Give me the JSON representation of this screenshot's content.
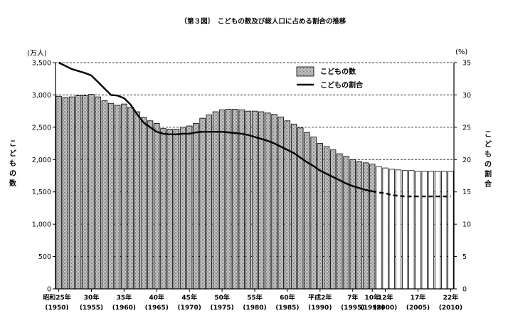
{
  "chart_data": {
    "type": "bar+line",
    "title": "〔第３図〕　こどもの数及び総人口に占める割合の推移",
    "left_axis": {
      "unit": "(万人)",
      "label": "こどもの数",
      "range": [
        0,
        3500
      ],
      "ticks": [
        "0",
        "500",
        "1,000",
        "1,500",
        "2,000",
        "2,500",
        "3,000",
        "3,500"
      ]
    },
    "right_axis": {
      "unit": "(%)",
      "label": "こどもの割合",
      "range": [
        0,
        35
      ],
      "ticks": [
        "0",
        "5",
        "10",
        "15",
        "20",
        "25",
        "30",
        "35"
      ]
    },
    "legend": {
      "bars": "こどもの数",
      "line": "こどもの割合",
      "placement": "top-center"
    },
    "x_label_rows": [
      {
        "text": "昭和25年",
        "sub": "(1950)"
      },
      {
        "text": "30年",
        "sub": "(1955)"
      },
      {
        "text": "35年",
        "sub": "(1960)"
      },
      {
        "text": "40年",
        "sub": "(1965)"
      },
      {
        "text": "45年",
        "sub": "(1970)"
      },
      {
        "text": "50年",
        "sub": "(1975)"
      },
      {
        "text": "55年",
        "sub": "(1980)"
      },
      {
        "text": "60年",
        "sub": "(1985)"
      },
      {
        "text": "平成2年",
        "sub": "(1990)"
      },
      {
        "text": "7年",
        "sub": "(1995)"
      },
      {
        "text": "10年",
        "sub": "(1998)"
      },
      {
        "text": "12年",
        "sub": "(2000)"
      },
      {
        "text": "17年",
        "sub": "(2005)"
      },
      {
        "text": "22年",
        "sub": "(2010)"
      }
    ],
    "x_label_years": [
      1950,
      1955,
      1960,
      1965,
      1970,
      1975,
      1980,
      1985,
      1990,
      1995,
      1998,
      2000,
      2005,
      2010
    ],
    "years": [
      1950,
      1951,
      1952,
      1953,
      1954,
      1955,
      1956,
      1957,
      1958,
      1959,
      1960,
      1961,
      1962,
      1963,
      1964,
      1965,
      1966,
      1967,
      1968,
      1969,
      1970,
      1971,
      1972,
      1973,
      1974,
      1975,
      1976,
      1977,
      1978,
      1979,
      1980,
      1981,
      1982,
      1983,
      1984,
      1985,
      1986,
      1987,
      1988,
      1989,
      1990,
      1991,
      1992,
      1993,
      1994,
      1995,
      1996,
      1997,
      1998,
      1999,
      2000,
      2001,
      2002,
      2003,
      2004,
      2005,
      2006,
      2007,
      2008,
      2009,
      2010
    ],
    "actual_until": 1998,
    "children_count": [
      2980,
      2960,
      2970,
      2990,
      2990,
      3010,
      2970,
      2910,
      2870,
      2840,
      2860,
      2810,
      2740,
      2650,
      2600,
      2560,
      2480,
      2470,
      2470,
      2500,
      2520,
      2560,
      2640,
      2690,
      2740,
      2770,
      2780,
      2780,
      2770,
      2750,
      2750,
      2740,
      2720,
      2700,
      2660,
      2600,
      2550,
      2490,
      2420,
      2350,
      2250,
      2200,
      2150,
      2090,
      2050,
      2000,
      1970,
      1950,
      1930,
      1890,
      1870,
      1850,
      1840,
      1830,
      1830,
      1820,
      1820,
      1820,
      1820,
      1820,
      1820
    ],
    "children_share": [
      35.0,
      34.5,
      34.0,
      33.7,
      33.4,
      33.0,
      32.0,
      31.0,
      30.0,
      29.9,
      29.5,
      28.5,
      27.0,
      25.7,
      25.0,
      24.3,
      24.0,
      23.9,
      23.9,
      24.0,
      24.0,
      24.2,
      24.3,
      24.3,
      24.3,
      24.3,
      24.2,
      24.1,
      24.0,
      23.8,
      23.5,
      23.2,
      22.9,
      22.5,
      22.0,
      21.5,
      21.0,
      20.3,
      19.6,
      19.0,
      18.3,
      17.8,
      17.3,
      16.8,
      16.3,
      15.9,
      15.6,
      15.3,
      15.1,
      14.9,
      14.8,
      14.5,
      14.4,
      14.3,
      14.3,
      14.3,
      14.3,
      14.3,
      14.3,
      14.3,
      14.3
    ]
  }
}
